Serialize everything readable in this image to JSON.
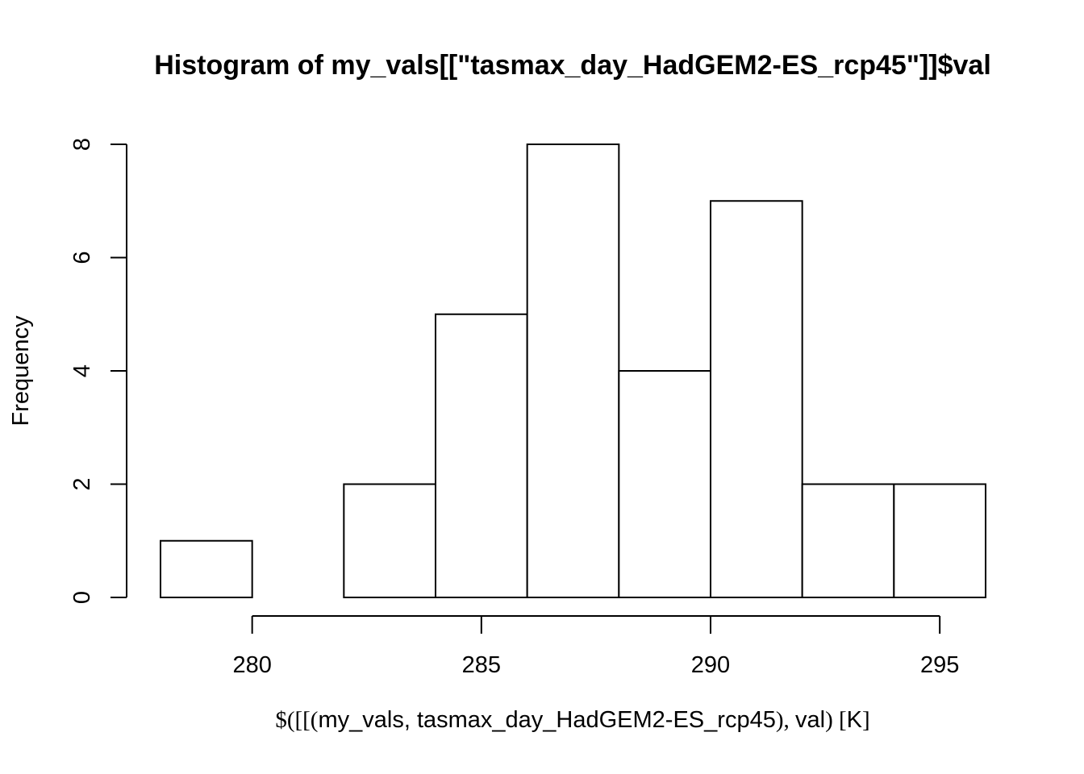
{
  "chart_data": {
    "type": "bar",
    "title": "Histogram of my_vals[[\"tasmax_day_HadGEM2-ES_rcp45\"]]$val",
    "xlabel_parts": [
      {
        "text": "$([[(",
        "serif": true
      },
      {
        "text": "my_vals, tasmax_day_HadGEM2-ES_rcp45",
        "serif": false
      },
      {
        "text": "), ",
        "serif": true
      },
      {
        "text": "val",
        "serif": false
      },
      {
        "text": ") [",
        "serif": true
      },
      {
        "text": "K",
        "serif": false
      },
      {
        "text": "]",
        "serif": true
      }
    ],
    "ylabel": "Frequency",
    "bins": [
      {
        "start": 278,
        "end": 280,
        "count": 1
      },
      {
        "start": 280,
        "end": 282,
        "count": 0
      },
      {
        "start": 282,
        "end": 284,
        "count": 2
      },
      {
        "start": 284,
        "end": 286,
        "count": 5
      },
      {
        "start": 286,
        "end": 288,
        "count": 8
      },
      {
        "start": 288,
        "end": 290,
        "count": 4
      },
      {
        "start": 290,
        "end": 292,
        "count": 7
      },
      {
        "start": 292,
        "end": 294,
        "count": 2
      },
      {
        "start": 294,
        "end": 296,
        "count": 2
      }
    ],
    "xticks": [
      "280",
      "285",
      "290",
      "295"
    ],
    "yticks": [
      "0",
      "2",
      "4",
      "6",
      "8"
    ],
    "xlim": [
      278,
      296
    ],
    "ylim": [
      0,
      8
    ],
    "grid": false,
    "legend": "none",
    "bar_fill": "#ffffff",
    "bar_stroke": "#000000"
  }
}
